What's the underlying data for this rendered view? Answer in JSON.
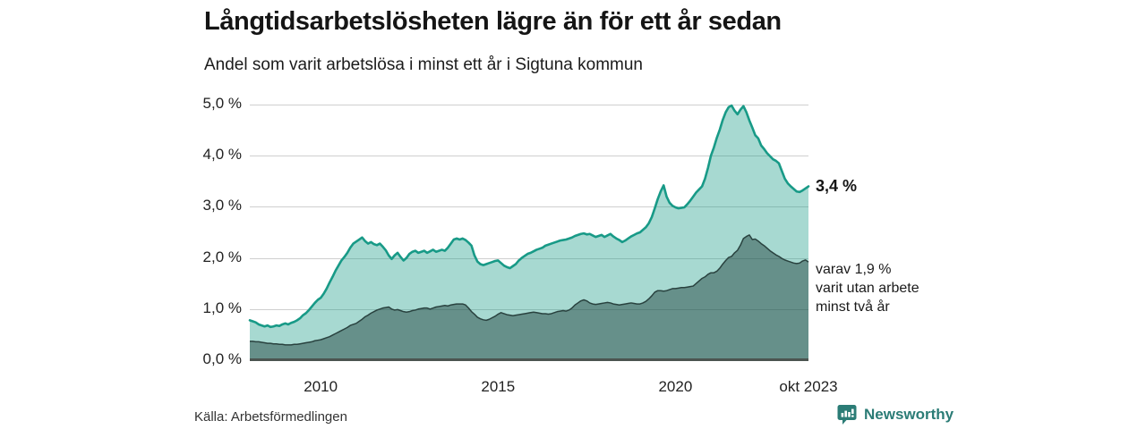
{
  "header": {
    "title": "Långtidsarbetslösheten lägre än för ett år sedan",
    "subtitle": "Andel som varit arbetslösa i minst ett år i Sigtuna kommun"
  },
  "annotations": {
    "total_label": "3,4 %",
    "subset_line1": "varav 1,9 %",
    "subset_line2": "varit utan arbete",
    "subset_line3": "minst två år"
  },
  "footer": {
    "source": "Källa: Arbetsförmedlingen",
    "brand": "Newsworthy"
  },
  "colors": {
    "line_total": "#189a87",
    "fill_total": "rgba(23,154,135,0.38)",
    "line_subset": "#29423f",
    "fill_subset": "rgba(25,56,51,0.45)",
    "gridline": "#cfcfcf",
    "axis": "#4b5450",
    "brand_teal": "#2b7c76"
  },
  "chart_data": {
    "type": "area",
    "title": "Långtidsarbetslösheten lägre än för ett år sedan",
    "subtitle": "Andel som varit arbetslösa i minst ett år i Sigtuna kommun",
    "x_start_year": 2008.0,
    "x_end_year": 2023.75,
    "x_unit": "month",
    "ylim": [
      0,
      5
    ],
    "grid": true,
    "y_tick_labels": [
      "0,0 %",
      "1,0 %",
      "2,0 %",
      "3,0 %",
      "4,0 %",
      "5,0 %"
    ],
    "y_tick_values": [
      0,
      1,
      2,
      3,
      4,
      5
    ],
    "x_tick_labels": [
      "2010",
      "2015",
      "2020",
      "okt 2023"
    ],
    "x_tick_years": [
      2010,
      2015,
      2020,
      2023.75
    ],
    "series": [
      {
        "name": "Andel arbetslösa minst ett år",
        "end_label": "3,4 %",
        "last_value": 3.4,
        "values": [
          0.78,
          0.76,
          0.74,
          0.7,
          0.68,
          0.66,
          0.68,
          0.65,
          0.66,
          0.68,
          0.67,
          0.7,
          0.72,
          0.7,
          0.73,
          0.75,
          0.78,
          0.82,
          0.88,
          0.92,
          0.98,
          1.05,
          1.12,
          1.18,
          1.22,
          1.3,
          1.4,
          1.52,
          1.63,
          1.75,
          1.85,
          1.95,
          2.02,
          2.1,
          2.2,
          2.28,
          2.32,
          2.36,
          2.4,
          2.33,
          2.28,
          2.31,
          2.27,
          2.25,
          2.28,
          2.22,
          2.15,
          2.05,
          1.98,
          2.05,
          2.1,
          2.02,
          1.95,
          2.0,
          2.08,
          2.12,
          2.14,
          2.1,
          2.12,
          2.14,
          2.1,
          2.13,
          2.16,
          2.12,
          2.14,
          2.16,
          2.14,
          2.2,
          2.28,
          2.36,
          2.38,
          2.36,
          2.38,
          2.35,
          2.3,
          2.24,
          2.05,
          1.93,
          1.88,
          1.86,
          1.88,
          1.9,
          1.92,
          1.94,
          1.95,
          1.9,
          1.85,
          1.82,
          1.8,
          1.84,
          1.88,
          1.95,
          2.0,
          2.04,
          2.08,
          2.1,
          2.13,
          2.16,
          2.18,
          2.2,
          2.24,
          2.26,
          2.28,
          2.3,
          2.32,
          2.34,
          2.35,
          2.36,
          2.38,
          2.4,
          2.43,
          2.45,
          2.47,
          2.48,
          2.46,
          2.47,
          2.44,
          2.41,
          2.43,
          2.45,
          2.41,
          2.44,
          2.47,
          2.42,
          2.38,
          2.35,
          2.31,
          2.34,
          2.38,
          2.42,
          2.45,
          2.48,
          2.5,
          2.55,
          2.6,
          2.68,
          2.8,
          2.97,
          3.15,
          3.3,
          3.42,
          3.2,
          3.08,
          3.02,
          2.99,
          2.97,
          2.98,
          2.99,
          3.05,
          3.12,
          3.2,
          3.28,
          3.34,
          3.4,
          3.55,
          3.76,
          4.0,
          4.16,
          4.35,
          4.51,
          4.7,
          4.85,
          4.95,
          4.98,
          4.88,
          4.81,
          4.9,
          4.97,
          4.85,
          4.69,
          4.55,
          4.4,
          4.34,
          4.2,
          4.13,
          4.05,
          3.99,
          3.93,
          3.9,
          3.85,
          3.7,
          3.55,
          3.46,
          3.4,
          3.35,
          3.3,
          3.29,
          3.32,
          3.36,
          3.4
        ]
      },
      {
        "name": "varav utan arbete minst två år",
        "end_label": "varav 1,9 % varit utan arbete minst två år",
        "last_value": 1.9,
        "values": [
          0.37,
          0.37,
          0.36,
          0.36,
          0.35,
          0.34,
          0.33,
          0.33,
          0.32,
          0.32,
          0.31,
          0.31,
          0.3,
          0.3,
          0.3,
          0.31,
          0.31,
          0.32,
          0.33,
          0.34,
          0.35,
          0.36,
          0.38,
          0.39,
          0.4,
          0.42,
          0.44,
          0.46,
          0.49,
          0.52,
          0.55,
          0.58,
          0.61,
          0.64,
          0.68,
          0.7,
          0.72,
          0.76,
          0.8,
          0.85,
          0.88,
          0.92,
          0.95,
          0.98,
          1.0,
          1.02,
          1.03,
          1.04,
          1.0,
          0.98,
          0.99,
          0.97,
          0.95,
          0.94,
          0.95,
          0.97,
          0.98,
          1.0,
          1.01,
          1.02,
          1.02,
          1.0,
          1.02,
          1.04,
          1.05,
          1.06,
          1.07,
          1.06,
          1.08,
          1.09,
          1.1,
          1.1,
          1.1,
          1.08,
          1.02,
          0.95,
          0.9,
          0.84,
          0.81,
          0.79,
          0.78,
          0.8,
          0.83,
          0.86,
          0.9,
          0.93,
          0.91,
          0.89,
          0.88,
          0.87,
          0.88,
          0.89,
          0.9,
          0.91,
          0.92,
          0.93,
          0.94,
          0.93,
          0.92,
          0.91,
          0.91,
          0.9,
          0.91,
          0.93,
          0.95,
          0.96,
          0.97,
          0.96,
          0.98,
          1.02,
          1.08,
          1.12,
          1.16,
          1.18,
          1.16,
          1.12,
          1.1,
          1.09,
          1.1,
          1.11,
          1.12,
          1.13,
          1.12,
          1.1,
          1.09,
          1.08,
          1.09,
          1.1,
          1.11,
          1.12,
          1.11,
          1.1,
          1.1,
          1.12,
          1.15,
          1.2,
          1.26,
          1.33,
          1.36,
          1.36,
          1.35,
          1.36,
          1.38,
          1.4,
          1.4,
          1.41,
          1.42,
          1.42,
          1.43,
          1.44,
          1.45,
          1.5,
          1.55,
          1.6,
          1.63,
          1.68,
          1.71,
          1.71,
          1.74,
          1.8,
          1.88,
          1.95,
          2.01,
          2.03,
          2.1,
          2.15,
          2.25,
          2.38,
          2.42,
          2.45,
          2.36,
          2.37,
          2.33,
          2.28,
          2.24,
          2.19,
          2.14,
          2.1,
          2.06,
          2.03,
          1.99,
          1.96,
          1.94,
          1.92,
          1.9,
          1.89,
          1.9,
          1.94,
          1.96,
          1.92
        ]
      }
    ]
  }
}
